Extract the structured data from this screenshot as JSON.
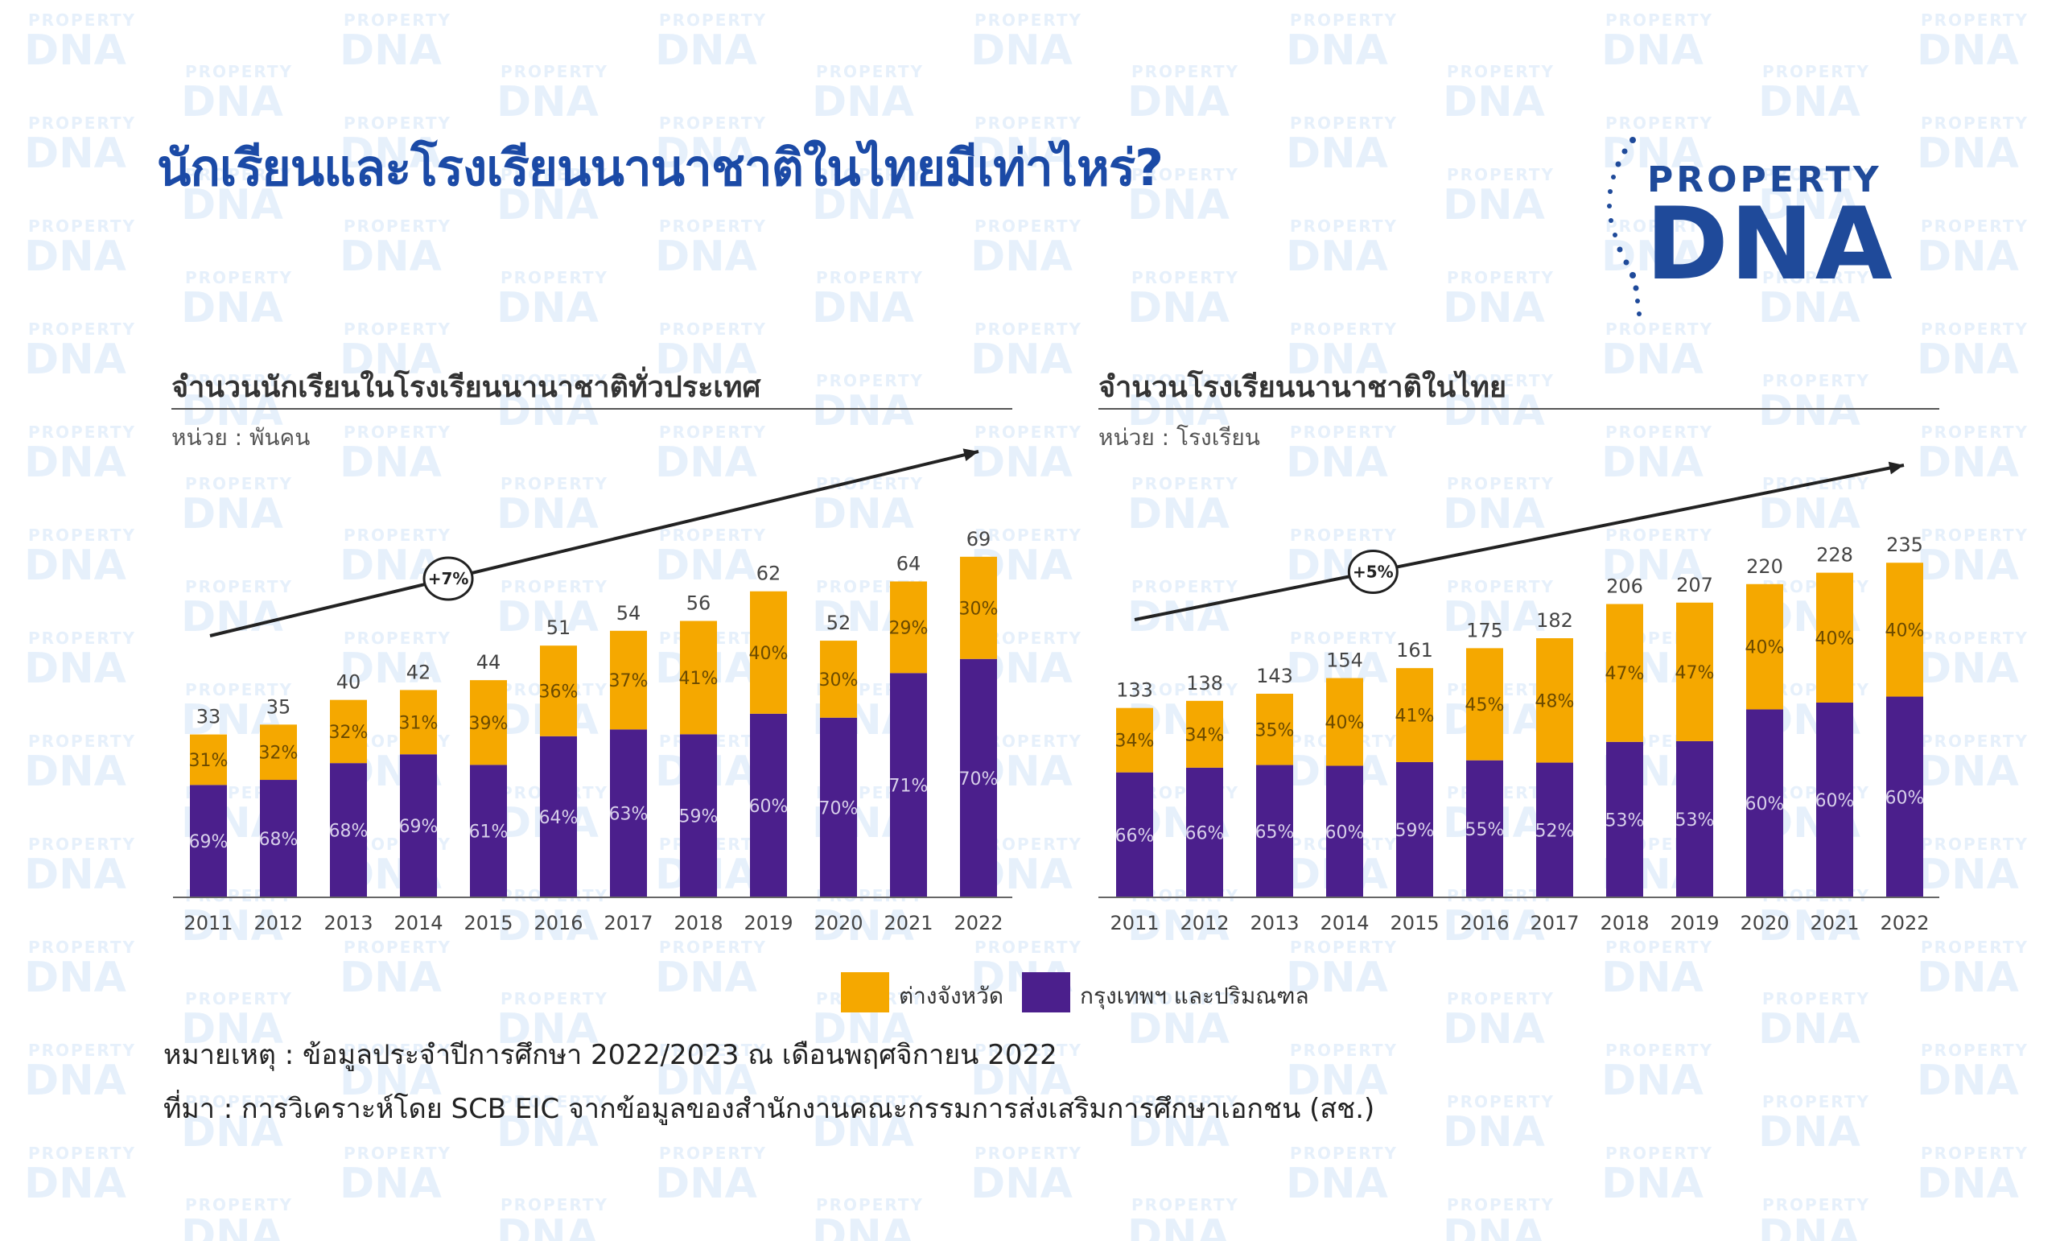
{
  "page": {
    "title": "นักเรียนและโรงเรียนนานาชาติในไทยมีเท่าไหร่?",
    "note": "หมายเหตุ : ข้อมูลประจำปีการศึกษา 2022/2023 ณ เดือนพฤศจิกายน 2022",
    "source": "ที่มา : การวิเคราะห์โดย SCB EIC จากข้อมูลของสำนักงานคณะกรรมการส่งเสริมการศึกษาเอกชน (สช.)"
  },
  "logo": {
    "top": "PROPERTY",
    "big": "DNA",
    "watermark_top": "PROPERTY",
    "watermark_big": "DNA"
  },
  "colors": {
    "upcountry": "#f5a800",
    "bangkok": "#4b1f8c",
    "title": "#1b4aa6",
    "logo": "#1f4a9a",
    "watermark": "#e6f0fb"
  },
  "legend": [
    {
      "label": "ต่างจังหวัด",
      "color": "#f5a800"
    },
    {
      "label": "กรุงเทพฯ และปริมณฑล",
      "color": "#4b1f8c"
    }
  ],
  "chart_data": [
    {
      "type": "bar",
      "stacked": true,
      "title": "จำนวนนักเรียนในโรงเรียนนานาชาติทั่วประเทศ",
      "unit": "หน่วย : พันคน",
      "categories": [
        "2011",
        "2012",
        "2013",
        "2014",
        "2015",
        "2016",
        "2017",
        "2018",
        "2019",
        "2020",
        "2021",
        "2022"
      ],
      "totals": [
        33,
        35,
        40,
        42,
        44,
        51,
        54,
        56,
        62,
        52,
        64,
        69
      ],
      "series": [
        {
          "name": "กรุงเทพฯ และปริมณฑล",
          "color": "#4b1f8c",
          "share_labels": [
            "69%",
            "68%",
            "68%",
            "69%",
            "61%",
            "64%",
            "63%",
            "59%",
            "60%",
            "70%",
            "71%",
            "70%"
          ]
        },
        {
          "name": "ต่างจังหวัด",
          "color": "#f5a800",
          "share_labels": [
            "31%",
            "32%",
            "32%",
            "31%",
            "39%",
            "36%",
            "37%",
            "41%",
            "40%",
            "30%",
            "29%",
            "30%"
          ]
        }
      ],
      "bottom_share": [
        0.69,
        0.68,
        0.68,
        0.69,
        0.61,
        0.64,
        0.63,
        0.59,
        0.6,
        0.7,
        0.71,
        0.7
      ],
      "growth_label": "+7%",
      "ylim": [
        0,
        75
      ]
    },
    {
      "type": "bar",
      "stacked": true,
      "title": "จำนวนโรงเรียนนานาชาติในไทย",
      "unit": "หน่วย : โรงเรียน",
      "categories": [
        "2011",
        "2012",
        "2013",
        "2014",
        "2015",
        "2016",
        "2017",
        "2018",
        "2019",
        "2020",
        "2021",
        "2022"
      ],
      "totals": [
        133,
        138,
        143,
        154,
        161,
        175,
        182,
        206,
        207,
        220,
        228,
        235
      ],
      "series": [
        {
          "name": "กรุงเทพฯ และปริมณฑล",
          "color": "#4b1f8c",
          "share_labels": [
            "66%",
            "66%",
            "65%",
            "60%",
            "59%",
            "55%",
            "52%",
            "53%",
            "53%",
            "60%",
            "60%",
            "60%"
          ]
        },
        {
          "name": "ต่างจังหวัด",
          "color": "#f5a800",
          "share_labels": [
            "34%",
            "34%",
            "35%",
            "40%",
            "41%",
            "45%",
            "48%",
            "47%",
            "47%",
            "40%",
            "40%",
            "40%"
          ]
        }
      ],
      "bottom_share": [
        0.66,
        0.66,
        0.65,
        0.6,
        0.59,
        0.55,
        0.52,
        0.53,
        0.53,
        0.6,
        0.6,
        0.6
      ],
      "growth_label": "+5%",
      "ylim": [
        0,
        260
      ]
    }
  ]
}
